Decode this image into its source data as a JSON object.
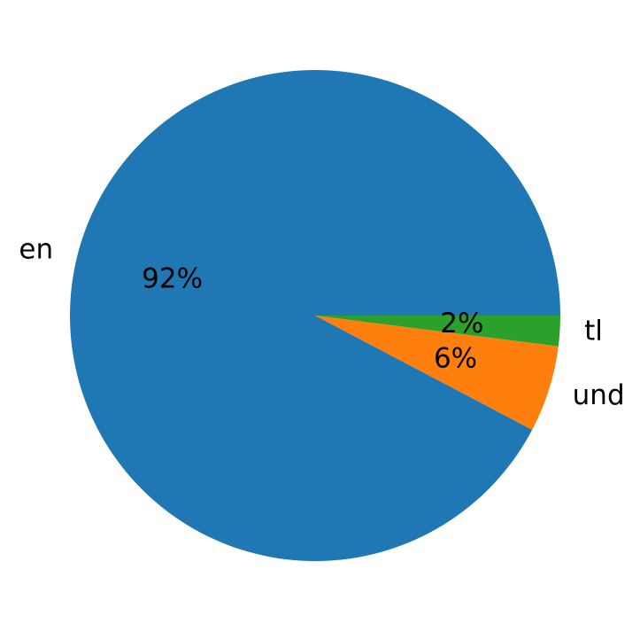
{
  "chart_data": {
    "type": "pie",
    "labels": [
      "en",
      "und",
      "tl"
    ],
    "values": [
      92.3,
      5.7,
      2.0
    ],
    "pct_labels": [
      "92%",
      "6%",
      "2%"
    ],
    "colors": [
      "#1f77b4",
      "#ff7f0e",
      "#2ca02c"
    ],
    "start_angle_deg": 0,
    "direction": "counterclockwise",
    "title": "",
    "legend": "none"
  }
}
